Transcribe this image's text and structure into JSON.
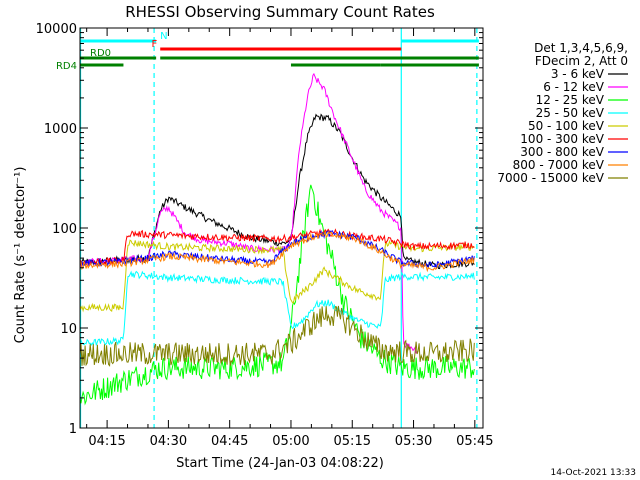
{
  "chart_data": {
    "type": "line",
    "title": "RHESSI Observing Summary Count Rates",
    "xlabel": "Start Time (24-Jan-03 04:08:22)",
    "ylabel": "Count Rate (s⁻¹ detector⁻¹)",
    "yscale": "log",
    "xlim": [
      "04:08:22",
      "05:47:00"
    ],
    "ylim": [
      1,
      10000
    ],
    "x_ticks": [
      "04:15",
      "04:30",
      "04:45",
      "05:00",
      "05:15",
      "05:30",
      "05:45"
    ],
    "y_ticks": [
      "1",
      "10",
      "100",
      "1000",
      "10000"
    ],
    "legend_header": [
      "Det 1,3,4,5,6,9,",
      "FDecim 2, Att 0"
    ],
    "legend_position": "right",
    "timestamp": "14-Oct-2021 13:33",
    "flags": [
      {
        "label": "N",
        "color": "#00ffff",
        "segments": [
          [
            "04:08:22",
            "04:27:00"
          ],
          [
            "05:27:00",
            "05:46:00"
          ]
        ]
      },
      {
        "label": "F",
        "color": "#ff0000",
        "segments": [
          [
            "04:28:00",
            "05:27:00"
          ]
        ]
      },
      {
        "label": "RD0",
        "color": "#008000",
        "segments": [
          [
            "04:08:22",
            "04:27:00"
          ],
          [
            "04:28:00",
            "05:46:00"
          ]
        ]
      },
      {
        "label": "RD4",
        "color": "#008000",
        "segments": [
          [
            "04:08:22",
            "04:19:00"
          ],
          [
            "05:00:00",
            "05:22:00"
          ],
          [
            "05:22:00",
            "05:46:00"
          ]
        ]
      }
    ],
    "vlines": [
      {
        "time": "04:08:30",
        "style": "solid"
      },
      {
        "time": "04:26:30",
        "style": "dashed"
      },
      {
        "time": "05:27:00",
        "style": "solid"
      },
      {
        "time": "05:45:30",
        "style": "dashed"
      }
    ],
    "series": [
      {
        "name": "3 - 6 keV",
        "color": "#000000",
        "points": [
          [
            "04:08:22",
            45
          ],
          [
            "04:19:00",
            48
          ],
          [
            "04:25:00",
            50
          ],
          [
            "04:28:00",
            150
          ],
          [
            "04:30:00",
            200
          ],
          [
            "04:33:00",
            170
          ],
          [
            "04:40:00",
            120
          ],
          [
            "04:50:00",
            80
          ],
          [
            "04:58:00",
            70
          ],
          [
            "05:00:00",
            75
          ],
          [
            "05:02:00",
            300
          ],
          [
            "05:04:00",
            800
          ],
          [
            "05:06:00",
            1300
          ],
          [
            "05:09:00",
            1250
          ],
          [
            "05:12:00",
            900
          ],
          [
            "05:15:00",
            500
          ],
          [
            "05:18:00",
            300
          ],
          [
            "05:22:00",
            200
          ],
          [
            "05:27:00",
            130
          ],
          [
            "05:27:30",
            48
          ],
          [
            "05:35:00",
            42
          ],
          [
            "05:45:00",
            45
          ]
        ]
      },
      {
        "name": "6 - 12 keV",
        "color": "#ff00ff",
        "points": [
          [
            "04:08:22",
            45
          ],
          [
            "04:19:00",
            48
          ],
          [
            "04:25:00",
            50
          ],
          [
            "04:28:00",
            140
          ],
          [
            "04:30:00",
            160
          ],
          [
            "04:34:00",
            90
          ],
          [
            "04:38:00",
            75
          ],
          [
            "04:45:00",
            70
          ],
          [
            "04:50:00",
            62
          ],
          [
            "04:58:00",
            60
          ],
          [
            "05:00:00",
            70
          ],
          [
            "05:02:00",
            600
          ],
          [
            "05:04:00",
            2000
          ],
          [
            "05:05:30",
            3300
          ],
          [
            "05:08:00",
            2500
          ],
          [
            "05:11:00",
            1200
          ],
          [
            "05:15:00",
            500
          ],
          [
            "05:18:00",
            250
          ],
          [
            "05:22:00",
            150
          ],
          [
            "05:27:00",
            100
          ],
          [
            "05:27:30",
            7
          ],
          [
            "05:31:00",
            6
          ]
        ]
      },
      {
        "name": "12 - 25 keV",
        "color": "#00ff00",
        "points": [
          [
            "04:08:22",
            2
          ],
          [
            "04:19:00",
            3
          ],
          [
            "04:28:00",
            4
          ],
          [
            "04:45:00",
            4
          ],
          [
            "04:58:00",
            4.5
          ],
          [
            "05:00:00",
            10
          ],
          [
            "05:03:00",
            80
          ],
          [
            "05:05:00",
            280
          ],
          [
            "05:07:00",
            120
          ],
          [
            "05:10:00",
            50
          ],
          [
            "05:13:00",
            18
          ],
          [
            "05:17:00",
            8
          ],
          [
            "05:22:00",
            5
          ],
          [
            "05:27:00",
            4
          ],
          [
            "05:45:00",
            4
          ]
        ]
      },
      {
        "name": "25 - 50 keV",
        "color": "#00ffff",
        "points": [
          [
            "04:08:22",
            7
          ],
          [
            "04:19:00",
            7.5
          ],
          [
            "04:20:00",
            35
          ],
          [
            "04:30:00",
            32
          ],
          [
            "04:45:00",
            30
          ],
          [
            "04:58:00",
            29
          ],
          [
            "05:00:00",
            10
          ],
          [
            "05:03:00",
            12
          ],
          [
            "05:06:00",
            17
          ],
          [
            "05:09:00",
            18
          ],
          [
            "05:12:00",
            15
          ],
          [
            "05:16:00",
            12
          ],
          [
            "05:22:00",
            10
          ],
          [
            "05:23:00",
            30
          ],
          [
            "05:27:00",
            33
          ],
          [
            "05:35:00",
            32
          ],
          [
            "05:45:00",
            33
          ]
        ]
      },
      {
        "name": "50 - 100 keV",
        "color": "#cccc00",
        "points": [
          [
            "04:08:22",
            16
          ],
          [
            "04:19:00",
            16
          ],
          [
            "04:20:00",
            72
          ],
          [
            "04:30:00",
            65
          ],
          [
            "04:45:00",
            62
          ],
          [
            "04:58:00",
            60
          ],
          [
            "05:00:00",
            18
          ],
          [
            "05:04:00",
            25
          ],
          [
            "05:08:00",
            38
          ],
          [
            "05:12:00",
            30
          ],
          [
            "05:16:00",
            24
          ],
          [
            "05:22:00",
            20
          ],
          [
            "05:23:00",
            70
          ],
          [
            "05:30:00",
            62
          ],
          [
            "05:45:00",
            65
          ]
        ]
      },
      {
        "name": "100 - 300 keV",
        "color": "#ff0000",
        "points": [
          [
            "04:08:22",
            45
          ],
          [
            "04:19:00",
            47
          ],
          [
            "04:20:00",
            88
          ],
          [
            "04:30:00",
            85
          ],
          [
            "04:45:00",
            80
          ],
          [
            "04:58:00",
            78
          ],
          [
            "05:00:00",
            80
          ],
          [
            "05:06:00",
            88
          ],
          [
            "05:10:00",
            90
          ],
          [
            "05:16:00",
            82
          ],
          [
            "05:22:00",
            78
          ],
          [
            "05:27:00",
            70
          ],
          [
            "05:30:00",
            65
          ],
          [
            "05:45:00",
            68
          ]
        ]
      },
      {
        "name": "300 - 800 keV",
        "color": "#0000ff",
        "points": [
          [
            "04:08:22",
            44
          ],
          [
            "04:19:00",
            46
          ],
          [
            "04:25:00",
            50
          ],
          [
            "04:30:00",
            55
          ],
          [
            "04:45:00",
            48
          ],
          [
            "04:55:00",
            45
          ],
          [
            "05:00:00",
            70
          ],
          [
            "05:06:00",
            85
          ],
          [
            "05:10:00",
            88
          ],
          [
            "05:16:00",
            80
          ],
          [
            "05:22:00",
            60
          ],
          [
            "05:27:00",
            45
          ],
          [
            "05:35:00",
            42
          ],
          [
            "05:45:00",
            50
          ]
        ]
      },
      {
        "name": "800 - 7000 keV",
        "color": "#ff8000",
        "points": [
          [
            "04:08:22",
            42
          ],
          [
            "04:19:00",
            44
          ],
          [
            "04:25:00",
            48
          ],
          [
            "04:30:00",
            52
          ],
          [
            "04:45:00",
            46
          ],
          [
            "04:55:00",
            43
          ],
          [
            "05:00:00",
            68
          ],
          [
            "05:06:00",
            83
          ],
          [
            "05:10:00",
            85
          ],
          [
            "05:16:00",
            78
          ],
          [
            "05:22:00",
            58
          ],
          [
            "05:27:00",
            43
          ],
          [
            "05:35:00",
            40
          ],
          [
            "05:45:00",
            48
          ]
        ]
      },
      {
        "name": "7000 - 15000 keV",
        "color": "#808000",
        "points": [
          [
            "04:08:22",
            5.5
          ],
          [
            "04:30:00",
            5.5
          ],
          [
            "04:55:00",
            5.5
          ],
          [
            "05:00:00",
            7
          ],
          [
            "05:05:00",
            11
          ],
          [
            "05:09:00",
            14
          ],
          [
            "05:13:00",
            12
          ],
          [
            "05:18:00",
            8
          ],
          [
            "05:22:00",
            6
          ],
          [
            "05:35:00",
            5.5
          ],
          [
            "05:45:00",
            6
          ]
        ]
      }
    ]
  }
}
